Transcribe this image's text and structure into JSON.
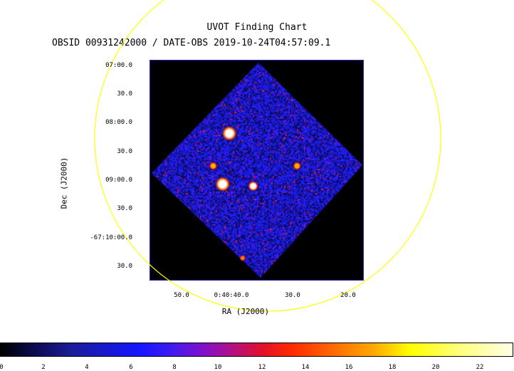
{
  "title": "UVOT Finding Chart",
  "subtitle": "OBSID 00931242000 / DATE-OBS 2019-10-24T04:57:09.1",
  "axes": {
    "x_label": "RA (J2000)",
    "y_label": "Dec (J2000)",
    "dec_ticks": [
      "07:00.0",
      "30.0",
      "08:00.0",
      "30.0",
      "09:00.0",
      "30.0",
      "-67:10:00.0",
      "30.0"
    ],
    "ra_ticks": [
      "50.0",
      "0:40:40.0",
      "30.0",
      "20.0"
    ]
  },
  "colorbar": {
    "ticks": [
      "0",
      "2",
      "4",
      "6",
      "8",
      "10",
      "12",
      "14",
      "16",
      "18",
      "20",
      "22"
    ],
    "min": 0,
    "max": 23.5
  },
  "colors": {
    "circle": "#ffff00",
    "frame": "#2020c0",
    "background": "#000000",
    "noise_base": "#1a1ad0"
  },
  "sources": [
    {
      "ra": 40.5,
      "dec": "08:10",
      "brightness": "saturated"
    },
    {
      "ra": 43.4,
      "dec": "08:44",
      "brightness": "medium"
    },
    {
      "ra": 41.7,
      "dec": "09:03",
      "brightness": "saturated"
    },
    {
      "ra": 36.2,
      "dec": "09:05",
      "brightness": "bright"
    },
    {
      "ra": 28.3,
      "dec": "08:44",
      "brightness": "medium"
    },
    {
      "ra": 38.1,
      "dec": "10:20",
      "brightness": "faint"
    }
  ]
}
